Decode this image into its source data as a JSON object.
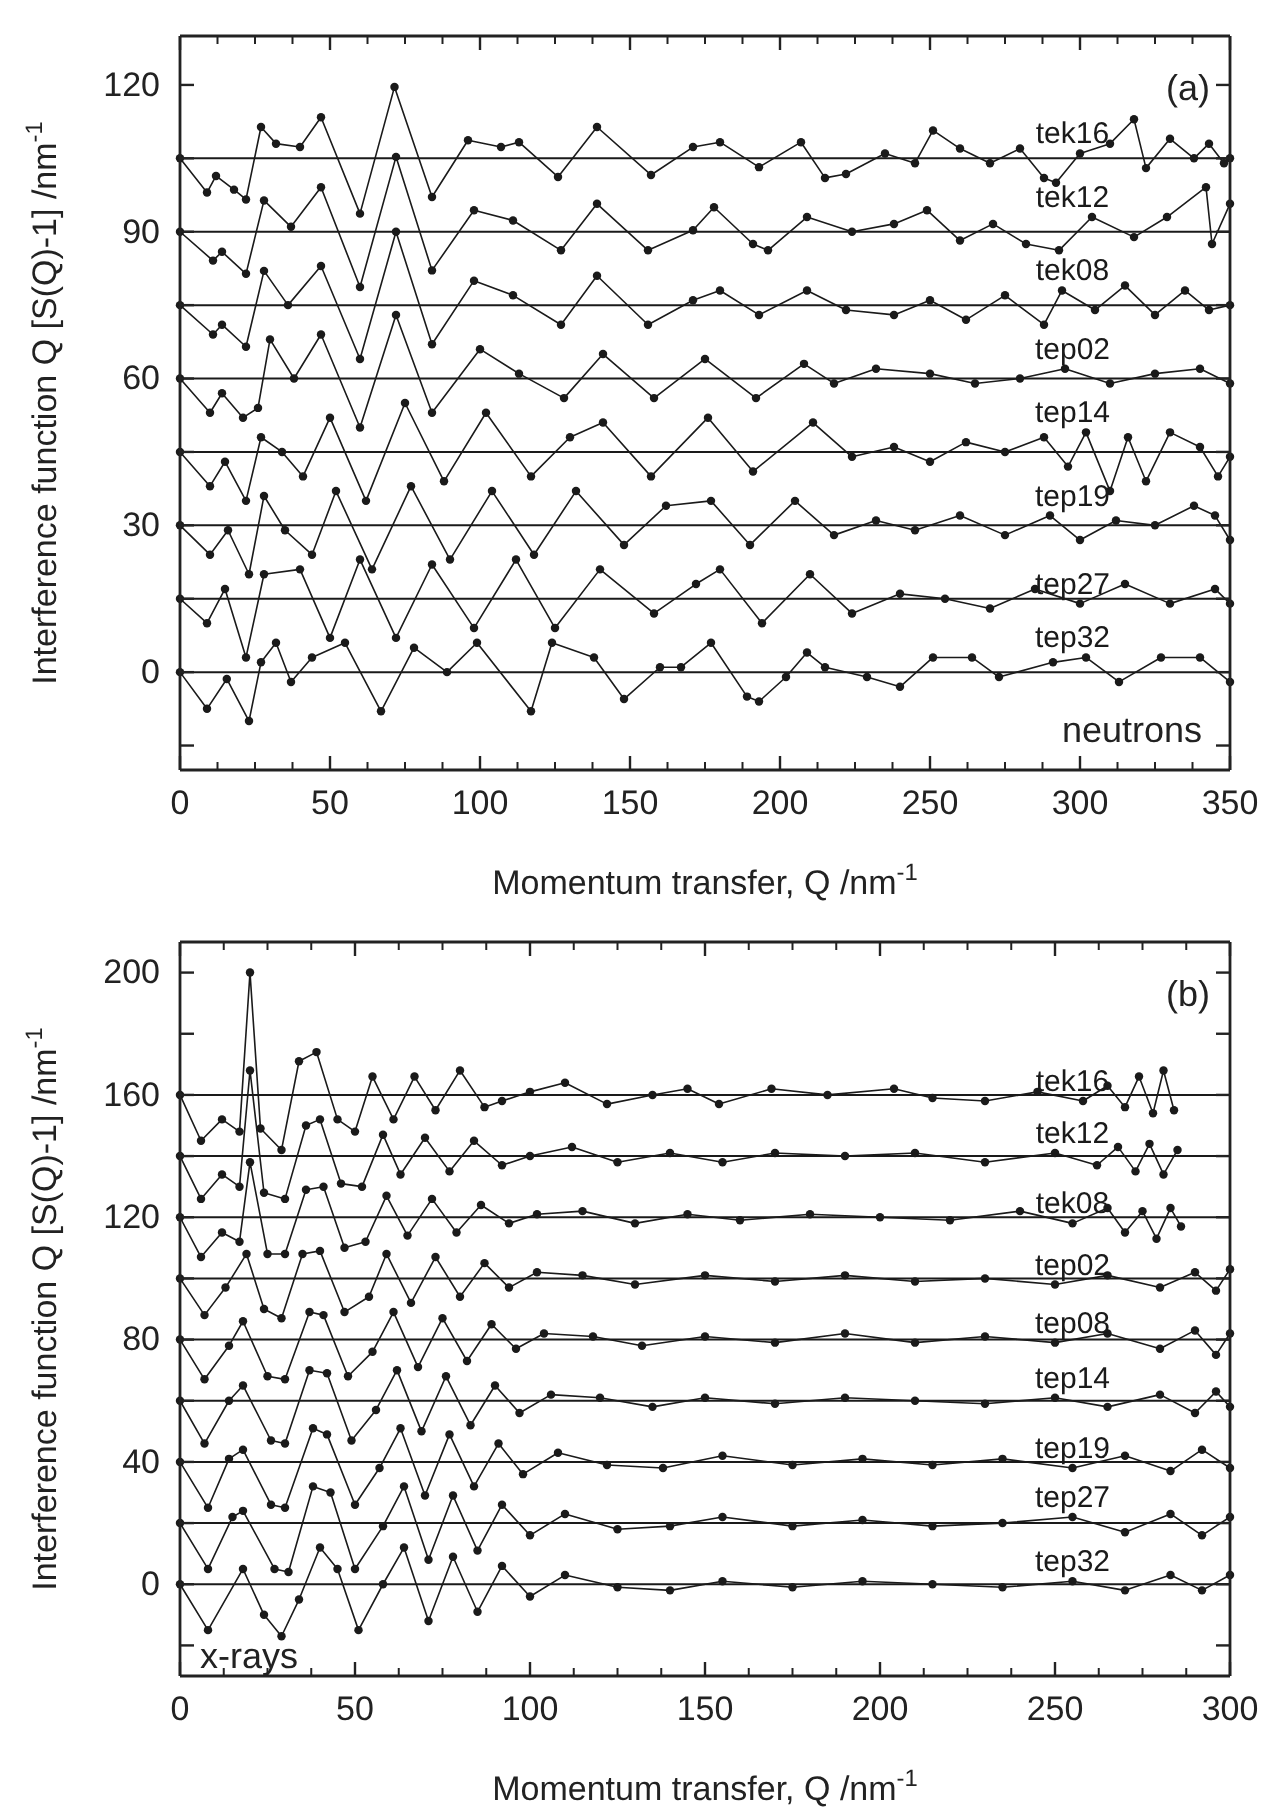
{
  "chart_data": [
    {
      "type": "line",
      "xlabel": "Momentum transfer, Q /nm$^{-1}$",
      "ylabel": "Interference function Q [S(Q)-1] /nm$^{-1}$",
      "xlim": [
        0,
        350
      ],
      "xticks": [
        0,
        50,
        100,
        150,
        200,
        250,
        300,
        350
      ],
      "ylim": [
        -20,
        130
      ],
      "yticks": [
        {
          "value": -15,
          "label": null
        },
        0,
        {
          "value": 15,
          "label": null
        },
        30,
        {
          "value": 45,
          "label": null
        },
        60,
        {
          "value": 75,
          "label": null
        },
        90,
        {
          "value": 105,
          "label": null
        },
        120
      ],
      "marker": "circle",
      "line_style": "solid",
      "annotations": [
        "(a)",
        "neutrons"
      ],
      "ref_lines": [
        {
          "axis": "y",
          "value": 0,
          "color": "#1a1a1a"
        },
        {
          "axis": "y",
          "value": 15,
          "color": "#1a1a1a"
        },
        {
          "axis": "y",
          "value": 30,
          "color": "#1a1a1a"
        },
        {
          "axis": "y",
          "value": 45,
          "color": "#1a1a1a"
        },
        {
          "axis": "y",
          "value": 60,
          "color": "#1a1a1a"
        },
        {
          "axis": "y",
          "value": 75,
          "color": "#1a1a1a"
        },
        {
          "axis": "y",
          "value": 90,
          "color": "#1a1a1a"
        },
        {
          "axis": "y",
          "value": 105,
          "color": "#1a1a1a"
        }
      ],
      "series": [
        {
          "name": "tek16",
          "color": "#1a1a1a",
          "x": [
            0,
            9,
            12,
            18,
            22,
            27,
            32,
            40,
            47,
            60,
            71.5,
            84,
            96,
            107,
            113,
            126,
            139,
            157,
            171,
            180,
            193,
            207,
            215,
            222,
            235,
            245,
            251,
            260,
            270,
            280,
            288,
            292,
            300,
            310,
            318,
            322,
            330,
            338,
            343,
            348,
            350
          ],
          "values": [
            105,
            98,
            101.4,
            98.6,
            96.6,
            111.4,
            108,
            107.3,
            113.4,
            93.7,
            119.6,
            97.1,
            108.7,
            107.3,
            108.3,
            101.2,
            111.4,
            101.6,
            107.3,
            108.3,
            103.2,
            108.3,
            101,
            101.8,
            106,
            104,
            110.7,
            107,
            104,
            107,
            101,
            100,
            106,
            108,
            113,
            103,
            109,
            105,
            108,
            104,
            105
          ]
        },
        {
          "name": "tek12",
          "color": "#1a1a1a",
          "x": [
            0,
            11,
            14,
            22,
            28,
            37,
            47,
            60,
            72,
            84,
            98,
            111,
            127,
            139,
            156,
            171,
            178,
            191,
            196,
            209,
            224,
            238,
            249,
            260,
            271,
            282,
            293,
            304,
            318,
            329,
            342,
            344,
            350
          ],
          "values": [
            90,
            84.1,
            85.9,
            81.4,
            96.4,
            91,
            99.1,
            78.7,
            105.3,
            82.1,
            94.4,
            92.3,
            86.2,
            95.7,
            86.2,
            90.3,
            95,
            87.5,
            86.2,
            93,
            90,
            91.6,
            94.4,
            88.2,
            91.6,
            87.5,
            86.2,
            93,
            88.9,
            93,
            99.1,
            87.5,
            95.7
          ]
        },
        {
          "name": "tek08",
          "color": "#1a1a1a",
          "x": [
            0,
            11,
            14,
            22,
            28,
            36,
            47,
            60,
            72,
            84,
            98,
            111,
            127,
            139,
            156,
            171,
            180,
            193,
            209,
            222,
            238,
            250,
            262,
            275,
            288,
            294,
            305,
            315,
            325,
            335,
            343,
            350
          ],
          "values": [
            75,
            69,
            71,
            66.5,
            82,
            75,
            83,
            64,
            90,
            67,
            80,
            77,
            71,
            81,
            71,
            76,
            78,
            73,
            78,
            74,
            73,
            76,
            72,
            77,
            71,
            78,
            74,
            79,
            73,
            78,
            74,
            75
          ]
        },
        {
          "name": "tep02",
          "color": "#1a1a1a",
          "x": [
            0,
            10,
            14,
            21,
            26,
            30,
            38,
            47,
            60,
            72,
            84,
            100,
            113,
            128,
            141,
            158,
            175,
            192,
            208,
            218,
            232,
            250,
            265,
            280,
            295,
            310,
            325,
            340,
            350
          ],
          "values": [
            60,
            53,
            57,
            52,
            54,
            68,
            60,
            69,
            50,
            73,
            53,
            66,
            61,
            56,
            65,
            56,
            64,
            56,
            63,
            59,
            62,
            61,
            59,
            60,
            62,
            59,
            61,
            62,
            59
          ]
        },
        {
          "name": "tep14",
          "color": "#1a1a1a",
          "x": [
            0,
            10,
            15,
            22,
            27,
            34,
            41,
            50,
            62,
            75,
            88,
            102,
            117,
            130,
            141,
            157,
            176,
            191,
            211,
            224,
            238,
            250,
            262,
            275,
            288,
            296,
            302,
            310,
            316,
            322,
            330,
            340,
            346,
            350
          ],
          "values": [
            45,
            38,
            43,
            35,
            48,
            45,
            40,
            52,
            35,
            55,
            39,
            53,
            40,
            48,
            51,
            40,
            52,
            41,
            51,
            44,
            46,
            43,
            47,
            45,
            48,
            42,
            49,
            37,
            48,
            39,
            49,
            46,
            40,
            44
          ]
        },
        {
          "name": "tep19",
          "color": "#1a1a1a",
          "x": [
            0,
            10,
            16,
            23,
            28,
            35,
            44,
            52,
            64,
            77,
            90,
            104,
            118,
            132,
            148,
            162,
            177,
            190,
            205,
            218,
            232,
            245,
            260,
            275,
            290,
            300,
            312,
            325,
            338,
            345,
            350
          ],
          "values": [
            30,
            24,
            29,
            20,
            36,
            29,
            24,
            37,
            21,
            38,
            23,
            37,
            24,
            37,
            26,
            34,
            35,
            26,
            35,
            28,
            31,
            29,
            32,
            28,
            32,
            27,
            31,
            30,
            34,
            32,
            27
          ]
        },
        {
          "name": "tep27",
          "color": "#1a1a1a",
          "x": [
            0,
            9,
            15,
            22,
            28,
            40,
            50,
            60,
            72,
            84,
            98,
            112,
            125,
            140,
            158,
            172,
            180,
            194,
            210,
            224,
            240,
            255,
            270,
            285,
            300,
            315,
            330,
            345,
            350
          ],
          "values": [
            15,
            10,
            17,
            3,
            20,
            21,
            7,
            23,
            7,
            22,
            9,
            23,
            9,
            21,
            12,
            18,
            21,
            10,
            20,
            12,
            16,
            15,
            13,
            17,
            14,
            18,
            14,
            17,
            14
          ]
        },
        {
          "name": "tep32",
          "color": "#1a1a1a",
          "x": [
            0,
            9,
            15.6,
            23,
            27,
            32,
            37,
            44,
            55,
            67,
            78,
            89,
            99,
            117,
            124,
            138,
            148,
            160,
            167,
            177,
            189,
            193,
            202,
            209,
            215,
            229,
            240,
            251,
            264,
            273,
            291,
            302,
            313,
            327,
            340,
            350
          ],
          "values": [
            0,
            -7.5,
            -1.4,
            -10,
            2,
            6,
            -2,
            3,
            6,
            -8,
            5,
            0,
            6,
            -8,
            6,
            3,
            -5.5,
            1,
            1,
            6,
            -5,
            -6,
            -1,
            4,
            1,
            -1,
            -3,
            3,
            3,
            -1,
            2,
            3,
            -2,
            3,
            3,
            -2
          ]
        }
      ]
    },
    {
      "type": "line",
      "xlabel": "Momentum transfer, Q /nm$^{-1}$",
      "ylabel": "Interference function Q [S(Q)-1] /nm$^{-1}$",
      "xlim": [
        0,
        300
      ],
      "xticks": [
        0,
        50,
        100,
        150,
        200,
        250,
        300
      ],
      "ylim": [
        -30,
        210
      ],
      "yticks": [
        {
          "value": -20,
          "label": null
        },
        0,
        {
          "value": 20,
          "label": null
        },
        40,
        {
          "value": 60,
          "label": null
        },
        80,
        {
          "value": 100,
          "label": null
        },
        120,
        {
          "value": 140,
          "label": null
        },
        160,
        {
          "value": 180,
          "label": null
        },
        200
      ],
      "marker": "circle",
      "line_style": "solid",
      "annotations": [
        "(b)",
        "x-rays"
      ],
      "ref_lines": [
        {
          "axis": "y",
          "value": 0,
          "color": "#1a1a1a"
        },
        {
          "axis": "y",
          "value": 20,
          "color": "#1a1a1a"
        },
        {
          "axis": "y",
          "value": 40,
          "color": "#1a1a1a"
        },
        {
          "axis": "y",
          "value": 60,
          "color": "#1a1a1a"
        },
        {
          "axis": "y",
          "value": 80,
          "color": "#1a1a1a"
        },
        {
          "axis": "y",
          "value": 100,
          "color": "#1a1a1a"
        },
        {
          "axis": "y",
          "value": 120,
          "color": "#1a1a1a"
        },
        {
          "axis": "y",
          "value": 140,
          "color": "#1a1a1a"
        },
        {
          "axis": "y",
          "value": 160,
          "color": "#1a1a1a"
        }
      ],
      "series": [
        {
          "name": "tek16",
          "color": "#1a1a1a",
          "x": [
            0,
            6,
            12,
            17,
            20,
            23,
            29,
            34,
            39,
            45,
            50,
            55,
            61,
            67,
            73,
            80,
            87,
            92,
            100,
            110,
            122,
            135,
            145,
            154,
            169,
            185,
            204,
            215,
            230,
            245,
            258,
            265,
            270,
            274,
            278,
            281,
            284
          ],
          "values": [
            160,
            145,
            152,
            148,
            200,
            149,
            142,
            171,
            174,
            152,
            148,
            166,
            152,
            166,
            155,
            168,
            156,
            158,
            161,
            164,
            157,
            160,
            162,
            157,
            162,
            160,
            162,
            159,
            158,
            161,
            158,
            163,
            156,
            166,
            154,
            168,
            155
          ]
        },
        {
          "name": "tek12",
          "color": "#1a1a1a",
          "x": [
            0,
            6,
            12,
            17,
            20,
            24,
            30,
            36,
            40,
            46,
            52,
            58,
            63,
            70,
            77,
            84,
            92,
            100,
            112,
            125,
            140,
            155,
            170,
            190,
            210,
            230,
            250,
            262,
            268,
            273,
            277,
            281,
            285
          ],
          "values": [
            140,
            126,
            134,
            130,
            168,
            128,
            126,
            150,
            152,
            131,
            130,
            147,
            134,
            146,
            135,
            145,
            137,
            140,
            143,
            138,
            141,
            138,
            141,
            140,
            141,
            138,
            141,
            137,
            143,
            135,
            144,
            134,
            142
          ]
        },
        {
          "name": "tek08",
          "color": "#1a1a1a",
          "x": [
            0,
            6,
            12,
            17,
            20,
            25,
            30,
            36,
            41,
            47,
            53,
            59,
            65,
            72,
            79,
            86,
            94,
            102,
            115,
            130,
            145,
            160,
            180,
            200,
            220,
            240,
            255,
            265,
            270,
            275,
            279,
            283,
            286
          ],
          "values": [
            120,
            107,
            115,
            112,
            138,
            108,
            108,
            129,
            130,
            110,
            112,
            127,
            114,
            126,
            115,
            124,
            118,
            121,
            122,
            118,
            121,
            119,
            121,
            120,
            119,
            122,
            118,
            123,
            115,
            122,
            113,
            123,
            117
          ]
        },
        {
          "name": "tep02",
          "color": "#1a1a1a",
          "x": [
            0,
            7,
            13,
            19,
            24,
            29,
            35,
            40,
            47,
            54,
            59,
            66,
            73,
            80,
            87,
            94,
            102,
            115,
            130,
            150,
            170,
            190,
            210,
            230,
            250,
            265,
            280,
            290,
            296,
            300
          ],
          "values": [
            100,
            88,
            97,
            108,
            90,
            87,
            108,
            109,
            89,
            94,
            108,
            92,
            107,
            94,
            105,
            97,
            102,
            101,
            98,
            101,
            99,
            101,
            99,
            100,
            98,
            101,
            97,
            102,
            96,
            103
          ]
        },
        {
          "name": "tep08",
          "color": "#1a1a1a",
          "x": [
            0,
            7,
            14,
            18,
            25,
            30,
            37,
            41,
            48,
            55,
            61,
            68,
            75,
            82,
            89,
            96,
            104,
            118,
            132,
            150,
            170,
            190,
            210,
            230,
            250,
            265,
            280,
            290,
            296,
            300
          ],
          "values": [
            80,
            67,
            78,
            86,
            68,
            67,
            89,
            88,
            68,
            76,
            89,
            71,
            87,
            73,
            85,
            77,
            82,
            81,
            78,
            81,
            79,
            82,
            79,
            81,
            79,
            82,
            77,
            83,
            75,
            82
          ]
        },
        {
          "name": "tep14",
          "color": "#1a1a1a",
          "x": [
            0,
            7,
            14,
            18,
            26,
            30,
            37,
            42,
            49,
            56,
            62,
            69,
            76,
            83,
            90,
            97,
            106,
            120,
            135,
            150,
            170,
            190,
            210,
            230,
            250,
            265,
            280,
            290,
            296,
            300
          ],
          "values": [
            60,
            46,
            60,
            65,
            47,
            46,
            70,
            69,
            47,
            57,
            70,
            50,
            68,
            52,
            65,
            56,
            62,
            61,
            58,
            61,
            59,
            61,
            60,
            59,
            61,
            58,
            62,
            56,
            63,
            58
          ]
        },
        {
          "name": "tep19",
          "color": "#1a1a1a",
          "x": [
            0,
            8,
            14,
            18,
            26,
            30,
            38,
            42,
            50,
            57,
            63,
            70,
            77,
            84,
            91,
            98,
            108,
            122,
            138,
            155,
            175,
            195,
            215,
            235,
            255,
            270,
            283,
            292,
            300
          ],
          "values": [
            40,
            25,
            41,
            44,
            26,
            25,
            51,
            49,
            26,
            38,
            51,
            29,
            49,
            32,
            46,
            36,
            43,
            39,
            38,
            42,
            39,
            41,
            39,
            41,
            38,
            42,
            37,
            44,
            38
          ]
        },
        {
          "name": "tep27",
          "color": "#1a1a1a",
          "x": [
            0,
            8,
            15,
            18,
            27,
            31,
            38,
            43,
            50,
            58,
            64,
            71,
            78,
            85,
            92,
            100,
            110,
            125,
            140,
            155,
            175,
            195,
            215,
            235,
            255,
            270,
            283,
            292,
            300
          ],
          "values": [
            20,
            5,
            22,
            24,
            5,
            4,
            32,
            30,
            5,
            19,
            32,
            8,
            29,
            11,
            26,
            16,
            23,
            18,
            19,
            22,
            19,
            21,
            19,
            20,
            22,
            17,
            23,
            16,
            22
          ]
        },
        {
          "name": "tep32",
          "color": "#1a1a1a",
          "x": [
            0,
            8,
            18,
            24,
            29,
            34,
            40,
            45,
            51,
            58,
            64,
            71,
            78,
            85,
            92,
            100,
            110,
            125,
            140,
            155,
            175,
            195,
            215,
            235,
            255,
            270,
            283,
            292,
            300
          ],
          "values": [
            0,
            -15,
            5,
            -10,
            -17,
            -5,
            12,
            5,
            -15,
            0,
            12,
            -12,
            9,
            -9,
            6,
            -4,
            3,
            -1,
            -2,
            1,
            -1,
            1,
            0,
            -1,
            1,
            -2,
            3,
            -2,
            3
          ]
        }
      ]
    }
  ]
}
